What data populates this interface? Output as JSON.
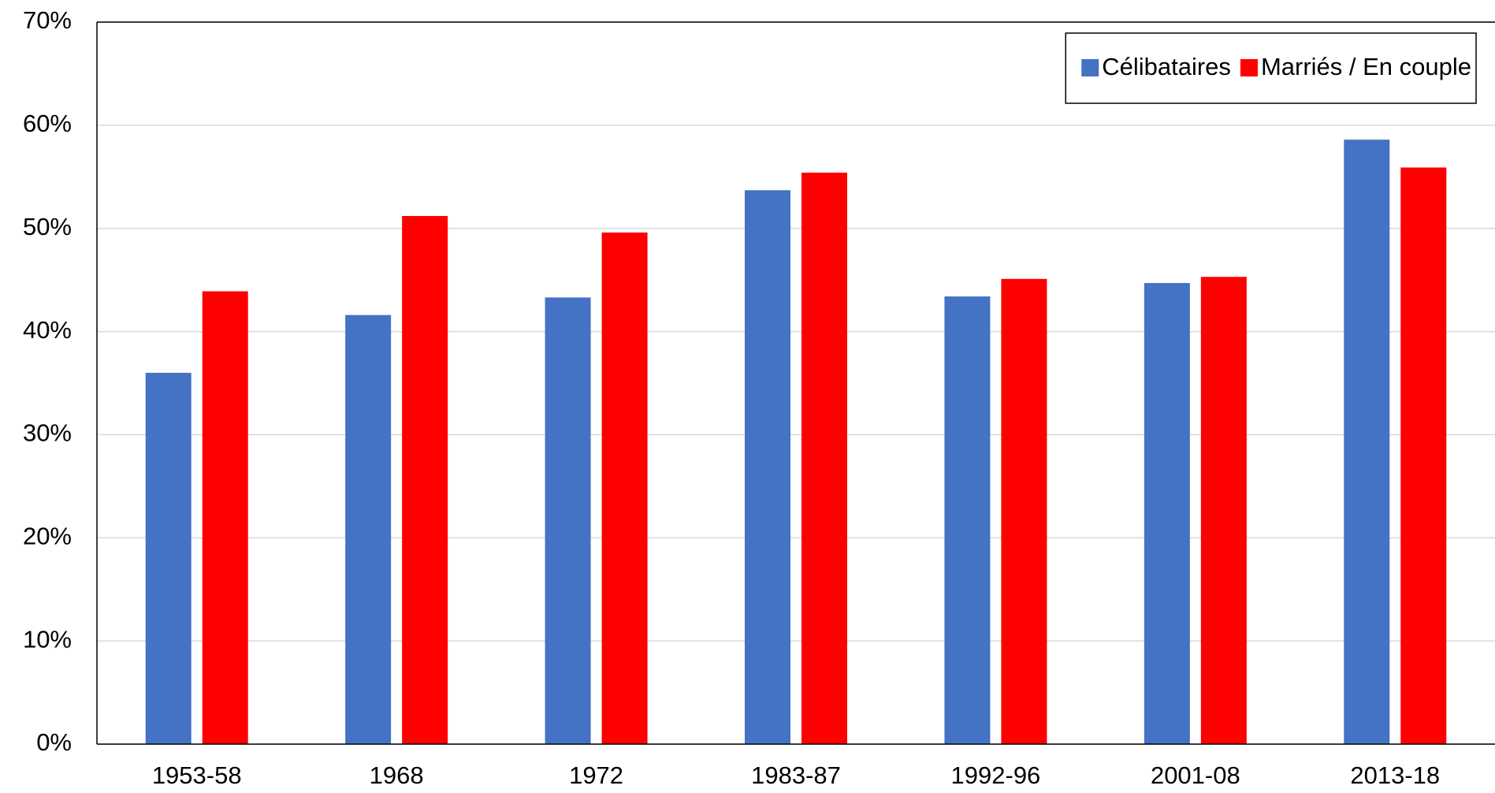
{
  "chart_data": {
    "type": "bar",
    "categories": [
      "1953-58",
      "1968",
      "1972",
      "1983-87",
      "1992-96",
      "2001-08",
      "2013-18"
    ],
    "series": [
      {
        "name": "Célibataires",
        "color": "#4472c4",
        "values": [
          36.0,
          41.6,
          43.3,
          53.7,
          43.4,
          44.7,
          58.6
        ]
      },
      {
        "name": "Marriés / En couple",
        "color": "#ff0000",
        "values": [
          43.9,
          51.2,
          49.6,
          55.4,
          45.1,
          45.3,
          55.9
        ]
      }
    ],
    "ylim": [
      0,
      70
    ],
    "yticks": [
      {
        "value": 0,
        "label": "0%"
      },
      {
        "value": 10,
        "label": "10%"
      },
      {
        "value": 20,
        "label": "20%"
      },
      {
        "value": 30,
        "label": "30%"
      },
      {
        "value": 40,
        "label": "40%"
      },
      {
        "value": 50,
        "label": "50%"
      },
      {
        "value": 60,
        "label": "60%"
      },
      {
        "value": 70,
        "label": "70%"
      }
    ],
    "grid": true,
    "legend": "upper right"
  }
}
